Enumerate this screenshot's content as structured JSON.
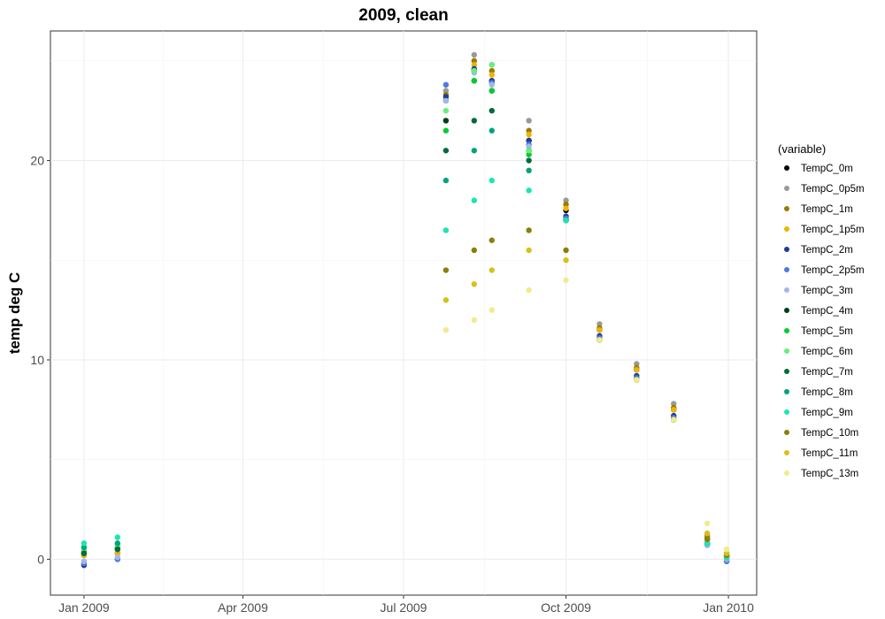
{
  "chart_data": {
    "type": "scatter",
    "title": "2009, clean",
    "xlabel": "",
    "ylabel": "temp deg C",
    "x_ticks": [
      "Jan 2009",
      "Apr 2009",
      "Jul 2009",
      "Oct 2009",
      "Jan 2010"
    ],
    "y_ticks": [
      0,
      10,
      20
    ],
    "xlim": [
      "2008-12-13",
      "2010-01-17"
    ],
    "ylim": [
      -1.8,
      26.5
    ],
    "grid": true,
    "legend_title": "(variable)",
    "legend_position": "right",
    "series": [
      {
        "name": "TempC_0m",
        "color": "#000000",
        "values": [
          [
            "2009-01-01",
            0.2
          ],
          [
            "2009-01-20",
            0.3
          ],
          [
            "2009-07-25",
            23.0
          ],
          [
            "2009-08-10",
            24.5
          ],
          [
            "2009-08-20",
            24.0
          ],
          [
            "2009-09-10",
            21.0
          ],
          [
            "2009-10-01",
            17.5
          ],
          [
            "2009-10-20",
            11.5
          ],
          [
            "2009-11-10",
            9.5
          ],
          [
            "2009-12-01",
            7.5
          ],
          [
            "2009-12-20",
            1.0
          ],
          [
            "2009-12-31",
            0.2
          ]
        ]
      },
      {
        "name": "TempC_0p5m",
        "color": "#999999",
        "values": [
          [
            "2009-01-01",
            0.2
          ],
          [
            "2009-01-20",
            0.3
          ],
          [
            "2009-07-25",
            23.5
          ],
          [
            "2009-08-10",
            25.3
          ],
          [
            "2009-08-20",
            24.8
          ],
          [
            "2009-09-10",
            22.0
          ],
          [
            "2009-10-01",
            18.0
          ],
          [
            "2009-10-20",
            11.8
          ],
          [
            "2009-11-10",
            9.8
          ],
          [
            "2009-12-01",
            7.8
          ],
          [
            "2009-12-20",
            1.2
          ],
          [
            "2009-12-31",
            0.3
          ]
        ]
      },
      {
        "name": "TempC_1m",
        "color": "#9c7a00",
        "values": [
          [
            "2009-01-01",
            0.2
          ],
          [
            "2009-01-20",
            0.3
          ],
          [
            "2009-07-25",
            23.3
          ],
          [
            "2009-08-10",
            25.0
          ],
          [
            "2009-08-20",
            24.5
          ],
          [
            "2009-09-10",
            21.5
          ],
          [
            "2009-10-01",
            17.8
          ],
          [
            "2009-10-20",
            11.6
          ],
          [
            "2009-11-10",
            9.6
          ],
          [
            "2009-12-01",
            7.6
          ],
          [
            "2009-12-20",
            1.1
          ],
          [
            "2009-12-31",
            0.2
          ]
        ]
      },
      {
        "name": "TempC_1p5m",
        "color": "#f0b400",
        "values": [
          [
            "2009-01-01",
            0.2
          ],
          [
            "2009-01-20",
            0.3
          ],
          [
            "2009-07-25",
            23.1
          ],
          [
            "2009-08-10",
            24.8
          ],
          [
            "2009-08-20",
            24.3
          ],
          [
            "2009-09-10",
            21.3
          ],
          [
            "2009-10-01",
            17.6
          ],
          [
            "2009-10-20",
            11.5
          ],
          [
            "2009-11-10",
            9.5
          ],
          [
            "2009-12-01",
            7.5
          ],
          [
            "2009-12-20",
            1.0
          ],
          [
            "2009-12-31",
            0.2
          ]
        ]
      },
      {
        "name": "TempC_2m",
        "color": "#1f3d99",
        "values": [
          [
            "2009-01-01",
            -0.3
          ],
          [
            "2009-01-20",
            0.0
          ],
          [
            "2009-07-25",
            23.2
          ],
          [
            "2009-08-10",
            24.6
          ],
          [
            "2009-08-20",
            24.0
          ],
          [
            "2009-09-10",
            21.0
          ],
          [
            "2009-10-01",
            17.2
          ],
          [
            "2009-10-20",
            11.2
          ],
          [
            "2009-11-10",
            9.2
          ],
          [
            "2009-12-01",
            7.2
          ],
          [
            "2009-12-20",
            0.8
          ],
          [
            "2009-12-31",
            -0.1
          ]
        ]
      },
      {
        "name": "TempC_2p5m",
        "color": "#4c7adf",
        "values": [
          [
            "2009-01-01",
            -0.2
          ],
          [
            "2009-01-20",
            0.0
          ],
          [
            "2009-07-25",
            23.8
          ],
          [
            "2009-08-10",
            24.5
          ],
          [
            "2009-08-20",
            23.9
          ],
          [
            "2009-09-10",
            20.8
          ],
          [
            "2009-10-01",
            17.1
          ],
          [
            "2009-10-20",
            11.1
          ],
          [
            "2009-11-10",
            9.1
          ],
          [
            "2009-12-01",
            7.1
          ],
          [
            "2009-12-20",
            0.7
          ],
          [
            "2009-12-31",
            -0.1
          ]
        ]
      },
      {
        "name": "TempC_3m",
        "color": "#a3b8e8",
        "values": [
          [
            "2009-01-01",
            -0.1
          ],
          [
            "2009-01-20",
            0.1
          ],
          [
            "2009-07-25",
            23.0
          ],
          [
            "2009-08-10",
            24.4
          ],
          [
            "2009-08-20",
            23.8
          ],
          [
            "2009-09-10",
            20.7
          ],
          [
            "2009-10-01",
            17.0
          ],
          [
            "2009-10-20",
            11.0
          ],
          [
            "2009-11-10",
            9.0
          ],
          [
            "2009-12-01",
            7.0
          ],
          [
            "2009-12-20",
            0.7
          ],
          [
            "2009-12-31",
            0.0
          ]
        ]
      },
      {
        "name": "TempC_4m",
        "color": "#003d14",
        "values": [
          [
            "2009-01-01",
            0.3
          ],
          [
            "2009-01-20",
            0.5
          ],
          [
            "2009-07-25",
            22.0
          ],
          [
            "2009-08-10",
            24.0
          ],
          [
            "2009-08-20",
            23.5
          ],
          [
            "2009-09-10",
            20.5
          ],
          [
            "2009-10-01",
            17.0
          ],
          [
            "2009-10-20",
            11.0
          ],
          [
            "2009-11-10",
            9.0
          ],
          [
            "2009-12-01",
            7.0
          ],
          [
            "2009-12-20",
            0.8
          ],
          [
            "2009-12-31",
            0.1
          ]
        ]
      },
      {
        "name": "TempC_5m",
        "color": "#00cc33",
        "values": [
          [
            "2009-01-01",
            0.4
          ],
          [
            "2009-01-20",
            0.6
          ],
          [
            "2009-07-25",
            21.5
          ],
          [
            "2009-08-10",
            24.0
          ],
          [
            "2009-08-20",
            23.5
          ],
          [
            "2009-09-10",
            20.3
          ],
          [
            "2009-10-01",
            17.0
          ],
          [
            "2009-10-20",
            11.0
          ],
          [
            "2009-11-10",
            9.0
          ],
          [
            "2009-12-01",
            7.0
          ],
          [
            "2009-12-20",
            0.8
          ],
          [
            "2009-12-31",
            0.1
          ]
        ]
      },
      {
        "name": "TempC_6m",
        "color": "#66f07a",
        "values": [
          [
            "2009-01-01",
            0.5
          ],
          [
            "2009-01-20",
            0.7
          ],
          [
            "2009-07-25",
            22.5
          ],
          [
            "2009-08-10",
            24.5
          ],
          [
            "2009-08-20",
            24.8
          ],
          [
            "2009-09-10",
            20.5
          ],
          [
            "2009-10-01",
            17.0
          ],
          [
            "2009-10-20",
            11.0
          ],
          [
            "2009-11-10",
            9.0
          ],
          [
            "2009-12-01",
            7.0
          ],
          [
            "2009-12-20",
            0.8
          ],
          [
            "2009-12-31",
            0.1
          ]
        ]
      },
      {
        "name": "TempC_7m",
        "color": "#006b3c",
        "values": [
          [
            "2009-01-01",
            0.3
          ],
          [
            "2009-01-20",
            0.5
          ],
          [
            "2009-07-25",
            20.5
          ],
          [
            "2009-08-10",
            22.0
          ],
          [
            "2009-08-20",
            22.5
          ],
          [
            "2009-09-10",
            20.0
          ],
          [
            "2009-10-01",
            17.0
          ],
          [
            "2009-10-20",
            11.0
          ],
          [
            "2009-11-10",
            9.0
          ],
          [
            "2009-12-01",
            7.0
          ],
          [
            "2009-12-20",
            0.8
          ],
          [
            "2009-12-31",
            0.1
          ]
        ]
      },
      {
        "name": "TempC_8m",
        "color": "#00a37a",
        "values": [
          [
            "2009-01-01",
            0.6
          ],
          [
            "2009-01-20",
            0.8
          ],
          [
            "2009-07-25",
            19.0
          ],
          [
            "2009-08-10",
            20.5
          ],
          [
            "2009-08-20",
            21.5
          ],
          [
            "2009-09-10",
            19.5
          ],
          [
            "2009-10-01",
            17.0
          ],
          [
            "2009-10-20",
            11.0
          ],
          [
            "2009-11-10",
            9.0
          ],
          [
            "2009-12-01",
            7.0
          ],
          [
            "2009-12-20",
            0.8
          ],
          [
            "2009-12-31",
            0.1
          ]
        ]
      },
      {
        "name": "TempC_9m",
        "color": "#1ae6b3",
        "values": [
          [
            "2009-01-01",
            0.8
          ],
          [
            "2009-01-20",
            1.1
          ],
          [
            "2009-07-25",
            16.5
          ],
          [
            "2009-08-10",
            18.0
          ],
          [
            "2009-08-20",
            19.0
          ],
          [
            "2009-09-10",
            18.5
          ],
          [
            "2009-10-01",
            17.0
          ],
          [
            "2009-10-20",
            11.0
          ],
          [
            "2009-11-10",
            9.0
          ],
          [
            "2009-12-01",
            7.0
          ],
          [
            "2009-12-20",
            0.8
          ],
          [
            "2009-12-31",
            0.1
          ]
        ]
      },
      {
        "name": "TempC_10m",
        "color": "#8a7f0a",
        "values": [
          [
            "2009-07-25",
            14.5
          ],
          [
            "2009-08-10",
            15.5
          ],
          [
            "2009-08-20",
            16.0
          ],
          [
            "2009-09-10",
            16.5
          ],
          [
            "2009-10-01",
            15.5
          ],
          [
            "2009-10-20",
            11.0
          ],
          [
            "2009-11-10",
            9.0
          ],
          [
            "2009-12-01",
            7.0
          ],
          [
            "2009-12-20",
            1.0
          ],
          [
            "2009-12-31",
            0.2
          ]
        ]
      },
      {
        "name": "TempC_11m",
        "color": "#d4c21a",
        "values": [
          [
            "2009-07-25",
            13.0
          ],
          [
            "2009-08-10",
            13.8
          ],
          [
            "2009-08-20",
            14.5
          ],
          [
            "2009-09-10",
            15.5
          ],
          [
            "2009-10-01",
            15.0
          ],
          [
            "2009-10-20",
            11.0
          ],
          [
            "2009-11-10",
            9.0
          ],
          [
            "2009-12-01",
            7.0
          ],
          [
            "2009-12-20",
            1.3
          ],
          [
            "2009-12-31",
            0.3
          ]
        ]
      },
      {
        "name": "TempC_13m",
        "color": "#f3ea8c",
        "values": [
          [
            "2009-07-25",
            11.5
          ],
          [
            "2009-08-10",
            12.0
          ],
          [
            "2009-08-20",
            12.5
          ],
          [
            "2009-09-10",
            13.5
          ],
          [
            "2009-10-01",
            14.0
          ],
          [
            "2009-10-20",
            11.0
          ],
          [
            "2009-11-10",
            9.0
          ],
          [
            "2009-12-01",
            7.0
          ],
          [
            "2009-12-20",
            1.8
          ],
          [
            "2009-12-31",
            0.5
          ]
        ]
      }
    ]
  }
}
